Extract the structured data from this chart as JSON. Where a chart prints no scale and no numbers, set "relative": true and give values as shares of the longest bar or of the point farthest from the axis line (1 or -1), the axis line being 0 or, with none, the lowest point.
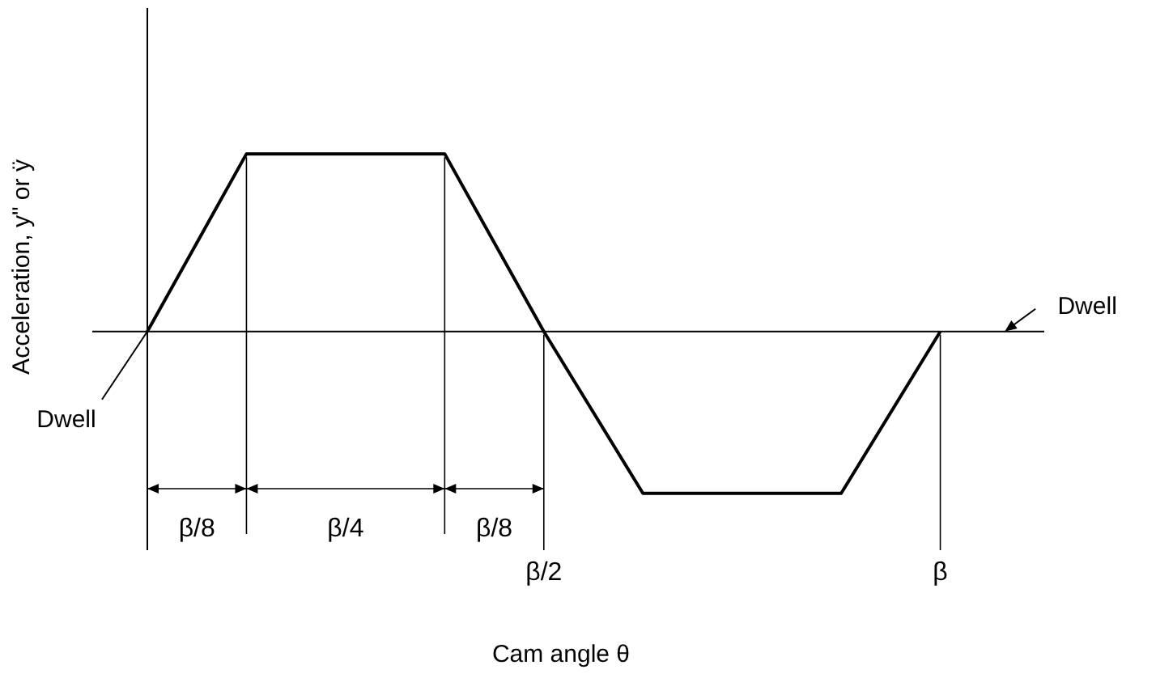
{
  "chart_data": {
    "type": "line",
    "relative": true,
    "xlabel": "Cam angle θ",
    "ylabel": "Acceleration, y\" or ÿ",
    "categories": [
      null,
      null,
      null,
      null,
      "β/2",
      null,
      null,
      null,
      "β",
      null
    ],
    "series": [
      {
        "color": "#000000",
        "values": [
          0,
          1,
          1,
          1,
          0,
          -0.91,
          -0.91,
          -0.91,
          0,
          null
        ]
      }
    ],
    "annotations": [
      "β/8",
      "β/4",
      "β/8",
      "Dwell",
      "Dwell"
    ],
    "marker": "none",
    "legend": false
  }
}
